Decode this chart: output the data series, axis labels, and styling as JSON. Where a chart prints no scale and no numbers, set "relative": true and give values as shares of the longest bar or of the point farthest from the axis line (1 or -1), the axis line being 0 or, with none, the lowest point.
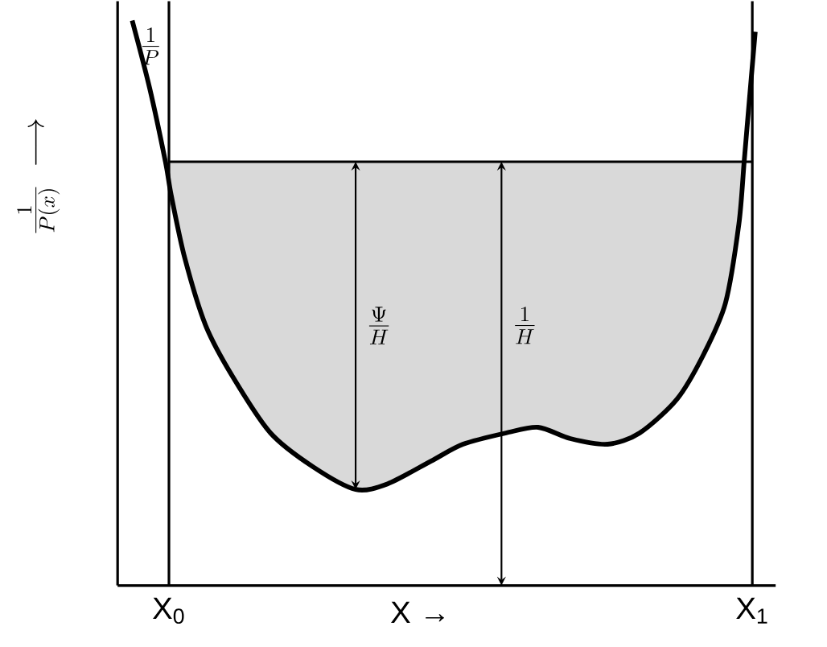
{
  "chart_data": {
    "type": "line",
    "relative": true,
    "xlabel": "X →",
    "ylabel": "\\frac{1}{P(x)}\\;\\longrightarrow",
    "x": [
      -0.063,
      -0.033,
      -0.006,
      0.004,
      0.027,
      0.063,
      0.109,
      0.174,
      0.247,
      0.32,
      0.375,
      0.449,
      0.504,
      0.578,
      0.633,
      0.688,
      0.752,
      0.807,
      0.871,
      0.917,
      0.954,
      0.977,
      0.986,
      0.995,
      1.005
    ],
    "series": [
      {
        "name": "\\frac{1}{P}",
        "color": "#000000",
        "values": [
          1.0,
          0.88,
          0.75,
          0.69,
          0.58,
          0.46,
          0.37,
          0.27,
          0.21,
          0.17,
          0.18,
          0.22,
          0.25,
          0.27,
          0.28,
          0.26,
          0.25,
          0.27,
          0.33,
          0.41,
          0.5,
          0.64,
          0.75,
          0.86,
          0.98
        ]
      }
    ],
    "xlim": [
      -0.088,
      1.04
    ],
    "xticks": [
      {
        "value": 0,
        "label": "X$_{0}$"
      },
      {
        "value": 1,
        "label": "X$_{1}$"
      }
    ],
    "ref_lines": [
      {
        "axis": "y",
        "value": 0.75
      },
      {
        "axis": "x",
        "value": 0
      },
      {
        "axis": "x",
        "value": 1
      }
    ],
    "annotations": [
      "\\frac{\\Psi}{H}",
      "\\frac{1}{H}"
    ],
    "grid": false,
    "legend": false,
    "marker": "none",
    "line_style": "solid"
  }
}
